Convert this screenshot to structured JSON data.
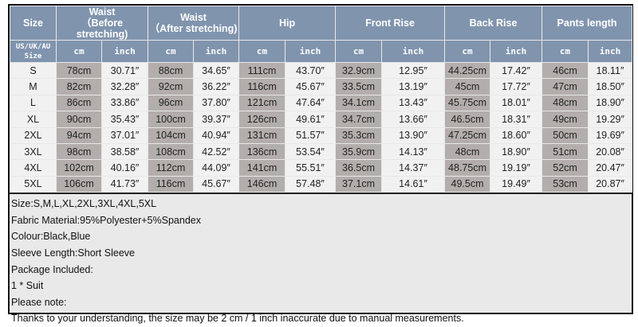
{
  "table": {
    "size_header": "Size",
    "size_subheader": [
      "US/UK/AU",
      "Size"
    ],
    "groups": [
      {
        "title": [
          "Waist",
          "（Before stretching)"
        ]
      },
      {
        "title": [
          "Waist",
          "（After stretching)"
        ]
      },
      {
        "title": [
          "Hip"
        ]
      },
      {
        "title": [
          "Front Rise"
        ]
      },
      {
        "title": [
          "Back Rise"
        ]
      },
      {
        "title": [
          "Pants length"
        ]
      }
    ],
    "unit_cm": "cm",
    "unit_inch": "inch",
    "rows": [
      {
        "size": "S",
        "vals": [
          "78cm",
          "30.71″",
          "88cm",
          "34.65″",
          "111cm",
          "43.70″",
          "32.9cm",
          "12.95″",
          "44.25cm",
          "17.42″",
          "46cm",
          "18.11″"
        ]
      },
      {
        "size": "M",
        "vals": [
          "82cm",
          "32.28″",
          "92cm",
          "36.22″",
          "116cm",
          "45.67″",
          "33.5cm",
          "13.19″",
          "45cm",
          "17.72″",
          "47cm",
          "18.50″"
        ]
      },
      {
        "size": "L",
        "vals": [
          "86cm",
          "33.86″",
          "96cm",
          "37.80″",
          "121cm",
          "47.64″",
          "34.1cm",
          "13.43″",
          "45.75cm",
          "18.01″",
          "48cm",
          "18.90″"
        ]
      },
      {
        "size": "XL",
        "vals": [
          "90cm",
          "35.43″",
          "100cm",
          "39.37″",
          "126cm",
          "49.61″",
          "34.7cm",
          "13.66″",
          "46.5cm",
          "18.31″",
          "49cm",
          "19.29″"
        ]
      },
      {
        "size": "2XL",
        "vals": [
          "94cm",
          "37.01″",
          "104cm",
          "40.94″",
          "131cm",
          "51.57″",
          "35.3cm",
          "13.90″",
          "47.25cm",
          "18.60″",
          "50cm",
          "19.69″"
        ]
      },
      {
        "size": "3XL",
        "vals": [
          "98cm",
          "38.58″",
          "108cm",
          "42.52″",
          "136cm",
          "53.54″",
          "35.9cm",
          "14.13″",
          "48cm",
          "18.90″",
          "51cm",
          "20.08″"
        ]
      },
      {
        "size": "4XL",
        "vals": [
          "102cm",
          "40.16″",
          "112cm",
          "44.09″",
          "141cm",
          "55.51″",
          "36.5cm",
          "14.37″",
          "48.75cm",
          "19.19″",
          "52cm",
          "20.47″"
        ]
      },
      {
        "size": "5XL",
        "vals": [
          "106cm",
          "41.73″",
          "116cm",
          "45.67″",
          "146cm",
          "57.48″",
          "37.1cm",
          "14.61″",
          "49.5cm",
          "19.49″",
          "53cm",
          "20.87″"
        ]
      }
    ]
  },
  "notes": [
    "Size:S,M,L,XL,2XL,3XL,4XL,5XL",
    "Fabric Material:95%Polyester+5%Spandex",
    "Colour:Black,Blue",
    "Sleeve Length:Short Sleeve",
    "Package Included:",
    "1 * Suit",
    "Please note:",
    "Thanks to your understanding, the size may be 2 cm / 1 inch inaccurate due to manual measurements."
  ],
  "colors": {
    "header": "#8094ae",
    "cm_cell": "#b3aeab",
    "inch_cell": "#f1f1f1"
  }
}
